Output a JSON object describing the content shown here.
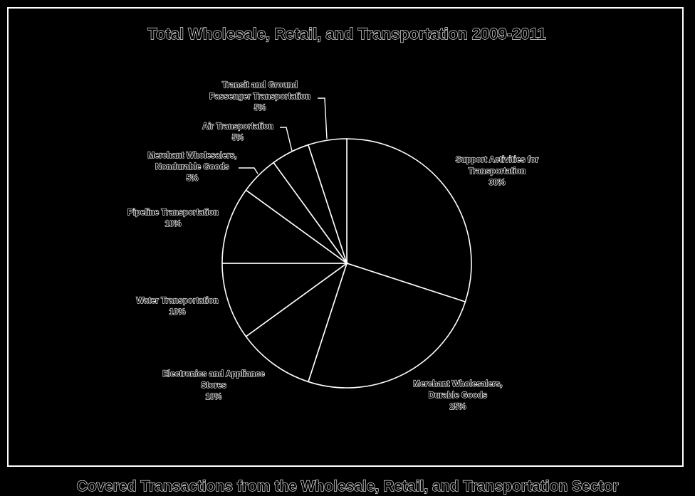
{
  "chart_data": {
    "type": "pie",
    "title": "Total Wholesale, Retail, and Transportation 2009-2011",
    "slices": [
      {
        "label": "Support Activities for Transportation",
        "value": 30,
        "value_label": "30%"
      },
      {
        "label": "Merchant Wholesalers, Durable Goods",
        "value": 25,
        "value_label": "25%"
      },
      {
        "label": "Electronics and Appliance Stores",
        "value": 10,
        "value_label": "10%"
      },
      {
        "label": "Water Transportation",
        "value": 10,
        "value_label": "10%"
      },
      {
        "label": "Pipeline Transportation",
        "value": 10,
        "value_label": "10%"
      },
      {
        "label": "Merchant Wholesalers, Nondurable Goods",
        "value": 5,
        "value_label": "5%"
      },
      {
        "label": "Air Transportation",
        "value": 5,
        "value_label": "5%"
      },
      {
        "label": "Transit and Ground Passenger Transportation",
        "value": 5,
        "value_label": "5%"
      }
    ],
    "colors": {
      "background": "#000000",
      "stroke": "#ffffff"
    }
  },
  "footer": {
    "caption": "Covered Transactions from the Wholesale, Retail, and Transportation Sector"
  }
}
